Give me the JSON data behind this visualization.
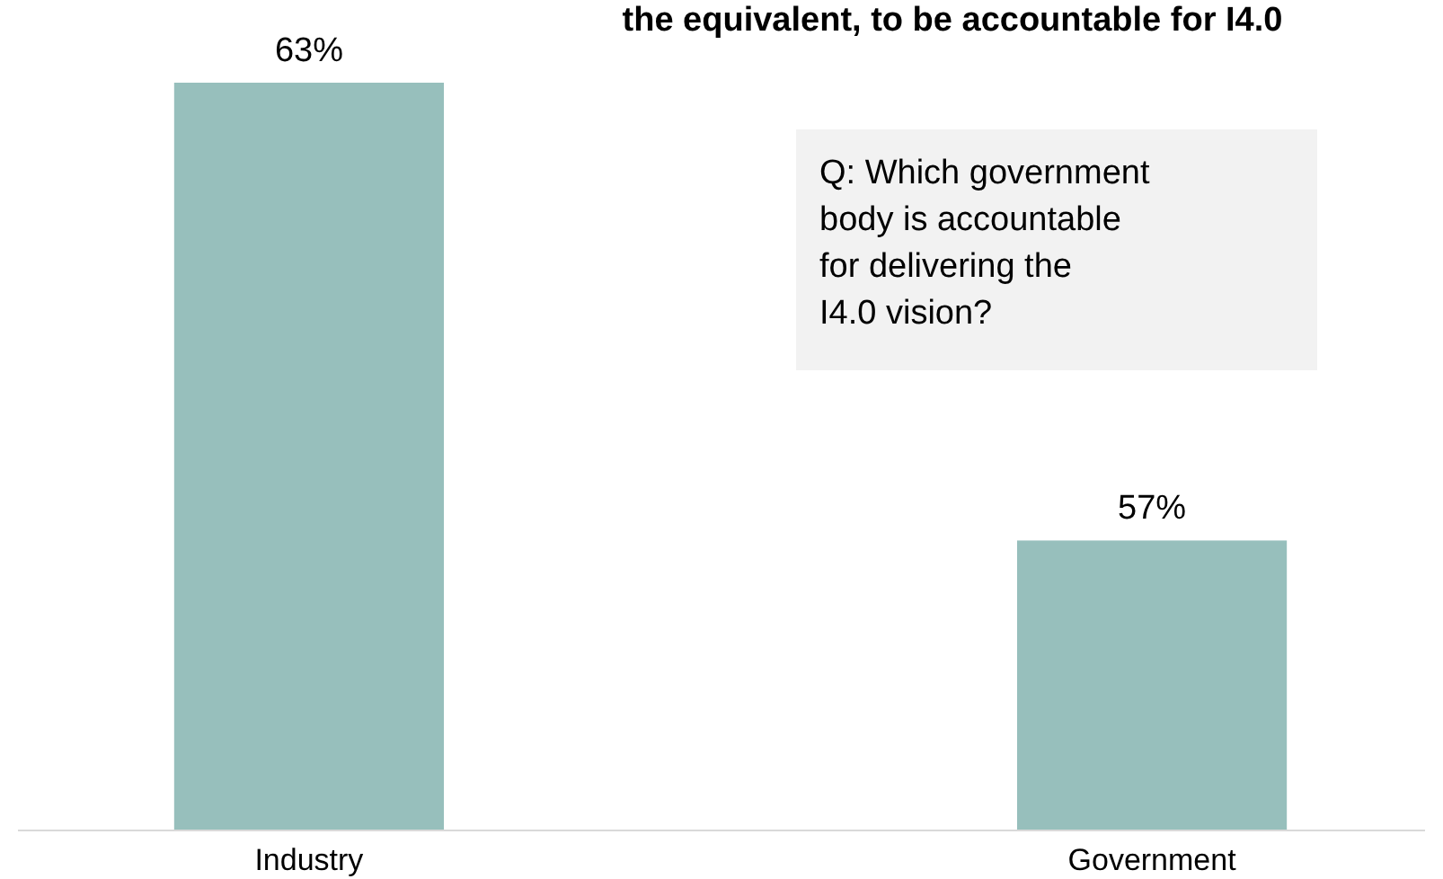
{
  "chart_data": {
    "type": "bar",
    "title": "the equivalent, to be accountable for I4.0",
    "categories": [
      "Industry",
      "Government"
    ],
    "values": [
      63,
      57
    ],
    "color": "#97bfbc",
    "ylim": [
      53.2,
      63
    ],
    "tick_labels": "x",
    "data_labels": true,
    "value_labels": [
      "63%",
      "57%"
    ],
    "annotations": [
      "Q: Which government body is accountable for delivering the I4.0 vision?"
    ]
  }
}
